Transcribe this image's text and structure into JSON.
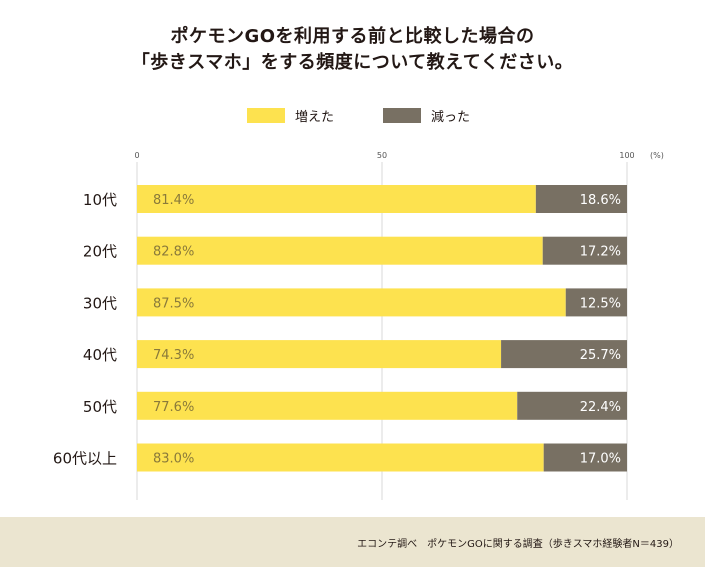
{
  "title_line1": "ポケモンGOを利用する前と比較した場合の",
  "title_line2": "「歩きスマホ」をする頻度について教えてください。",
  "legend": [
    {
      "label": "増えた",
      "color": "#fde24f",
      "icon": "yellow-square"
    },
    {
      "label": "減った",
      "color": "#787063",
      "icon": "gray-square"
    }
  ],
  "footer": "エコンテ調べ　ポケモンGOに関する調査（歩きスマホ経験者N＝439）",
  "chart_data": {
    "type": "bar",
    "orientation": "horizontal",
    "stacked": true,
    "categories": [
      "10代",
      "20代",
      "30代",
      "40代",
      "50代",
      "60代以上"
    ],
    "series": [
      {
        "name": "増えた",
        "values": [
          81.4,
          82.8,
          87.5,
          74.3,
          77.6,
          83.0
        ],
        "labels": [
          "81.4%",
          "82.8%",
          "87.5%",
          "74.3%",
          "77.6%",
          "83.0%"
        ],
        "color": "#fde24f"
      },
      {
        "name": "減った",
        "values": [
          18.6,
          17.2,
          12.5,
          25.7,
          22.4,
          17.0
        ],
        "labels": [
          "18.6%",
          "17.2%",
          "12.5%",
          "25.7%",
          "22.4%",
          "17.0%"
        ],
        "color": "#787063"
      }
    ],
    "xlim": [
      0,
      100
    ],
    "xticks": [
      "0",
      "50",
      "100"
    ],
    "unit_label": "(%)",
    "grid": true,
    "legend_position": "top-center"
  }
}
